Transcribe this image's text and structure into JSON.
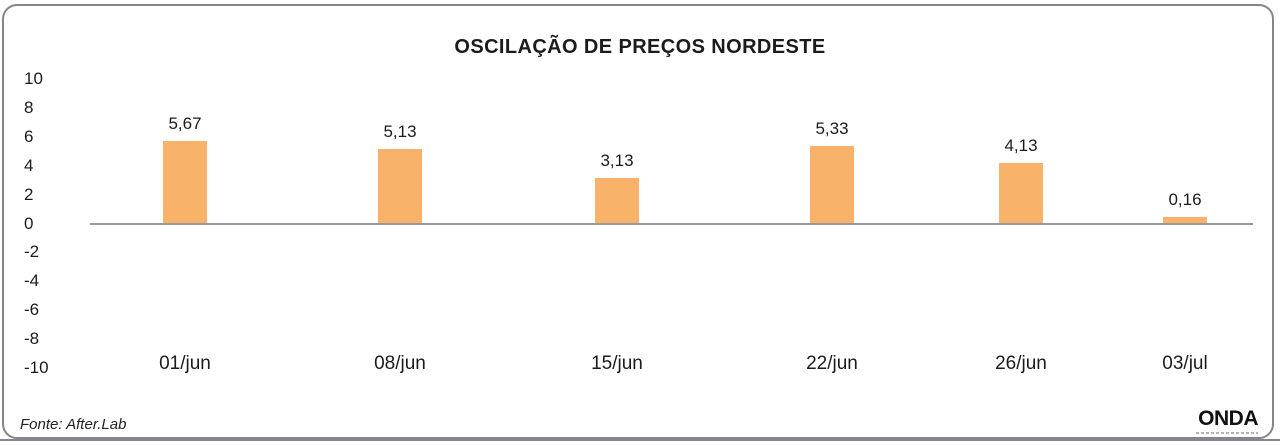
{
  "chart_data": {
    "type": "bar",
    "title": "OSCILAÇÃO DE PREÇOS NORDESTE",
    "categories": [
      "01/jun",
      "08/jun",
      "15/jun",
      "22/jun",
      "26/jun",
      "03/jul"
    ],
    "values": [
      5.67,
      5.13,
      3.13,
      5.33,
      4.13,
      0.16
    ],
    "value_labels": [
      "5,67",
      "5,13",
      "3,13",
      "5,33",
      "4,13",
      "0,16"
    ],
    "xlabel": "",
    "ylabel": "",
    "ylim": [
      -10,
      10
    ],
    "yticks": [
      10,
      8,
      6,
      4,
      2,
      0,
      -2,
      -4,
      -6,
      -8,
      -10
    ],
    "grid": false,
    "legend_position": "none",
    "bar_color": "#F9B269",
    "axis_line_color": "#98989E",
    "text_color": "#1B1B1B"
  },
  "footer": {
    "source": "Fonte: After.Lab",
    "logo": "ONDA"
  }
}
